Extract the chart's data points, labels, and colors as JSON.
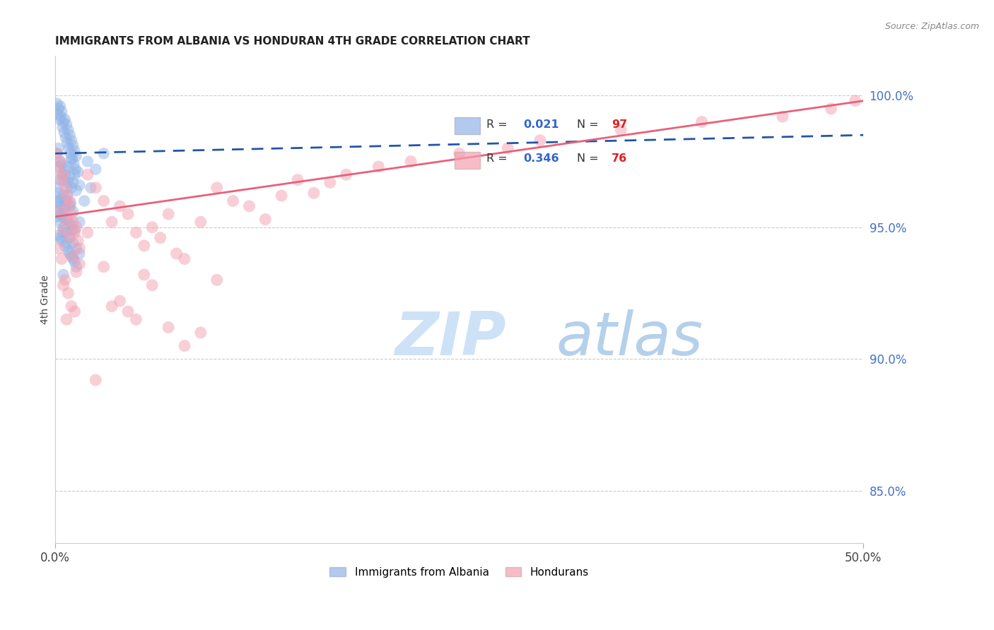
{
  "title": "IMMIGRANTS FROM ALBANIA VS HONDURAN 4TH GRADE CORRELATION CHART",
  "source": "Source: ZipAtlas.com",
  "ylabel": "4th Grade",
  "xlim": [
    0.0,
    50.0
  ],
  "ylim": [
    83.0,
    101.5
  ],
  "yticks": [
    85.0,
    90.0,
    95.0,
    100.0
  ],
  "ytick_labels": [
    "85.0%",
    "90.0%",
    "95.0%",
    "100.0%"
  ],
  "xtick_labels": [
    "0.0%",
    "50.0%"
  ],
  "xtick_vals": [
    0.0,
    50.0
  ],
  "legend_blue_r": "0.021",
  "legend_blue_n": "97",
  "legend_pink_r": "0.346",
  "legend_pink_n": "76",
  "blue_color": "#92b4e8",
  "pink_color": "#f4a0b0",
  "trendline_blue_color": "#2255aa",
  "trendline_pink_color": "#e8607a",
  "watermark_zip_color": "#c8dcf0",
  "watermark_atlas_color": "#b0c8e8",
  "blue_scatter": [
    [
      0.1,
      99.7
    ],
    [
      0.2,
      99.5
    ],
    [
      0.15,
      99.3
    ],
    [
      0.25,
      99.1
    ],
    [
      0.3,
      99.6
    ],
    [
      0.4,
      99.4
    ],
    [
      0.35,
      99.2
    ],
    [
      0.5,
      99.0
    ],
    [
      0.45,
      98.8
    ],
    [
      0.6,
      99.1
    ],
    [
      0.55,
      98.6
    ],
    [
      0.7,
      98.9
    ],
    [
      0.65,
      98.4
    ],
    [
      0.8,
      98.7
    ],
    [
      0.75,
      98.2
    ],
    [
      0.9,
      98.5
    ],
    [
      0.85,
      98.0
    ],
    [
      1.0,
      98.3
    ],
    [
      0.95,
      97.8
    ],
    [
      1.1,
      98.1
    ],
    [
      1.05,
      97.6
    ],
    [
      1.2,
      97.9
    ],
    [
      1.15,
      97.4
    ],
    [
      1.3,
      97.7
    ],
    [
      1.25,
      97.2
    ],
    [
      0.2,
      98.0
    ],
    [
      0.3,
      97.5
    ],
    [
      0.4,
      97.0
    ],
    [
      0.5,
      96.8
    ],
    [
      0.6,
      97.2
    ],
    [
      0.7,
      96.5
    ],
    [
      0.8,
      97.3
    ],
    [
      0.9,
      96.9
    ],
    [
      1.0,
      97.6
    ],
    [
      1.1,
      96.7
    ],
    [
      1.2,
      97.0
    ],
    [
      1.3,
      96.4
    ],
    [
      1.4,
      97.1
    ],
    [
      1.5,
      96.6
    ],
    [
      0.1,
      97.8
    ],
    [
      0.2,
      97.3
    ],
    [
      0.3,
      96.8
    ],
    [
      0.4,
      97.4
    ],
    [
      0.5,
      96.2
    ],
    [
      0.6,
      97.0
    ],
    [
      0.7,
      96.0
    ],
    [
      0.8,
      96.7
    ],
    [
      0.9,
      95.8
    ],
    [
      1.0,
      96.5
    ],
    [
      1.1,
      95.6
    ],
    [
      0.15,
      96.3
    ],
    [
      0.25,
      95.9
    ],
    [
      0.35,
      96.1
    ],
    [
      0.45,
      95.5
    ],
    [
      0.55,
      95.8
    ],
    [
      0.65,
      95.3
    ],
    [
      0.75,
      96.2
    ],
    [
      0.85,
      95.1
    ],
    [
      0.95,
      95.9
    ],
    [
      1.05,
      94.9
    ],
    [
      0.1,
      95.4
    ],
    [
      0.2,
      94.7
    ],
    [
      0.3,
      95.2
    ],
    [
      0.4,
      94.5
    ],
    [
      0.5,
      95.0
    ],
    [
      0.6,
      94.3
    ],
    [
      0.7,
      94.8
    ],
    [
      0.8,
      94.1
    ],
    [
      0.9,
      94.6
    ],
    [
      1.0,
      93.9
    ],
    [
      1.1,
      94.4
    ],
    [
      1.2,
      93.7
    ],
    [
      1.3,
      94.2
    ],
    [
      1.5,
      94.0
    ],
    [
      2.0,
      97.5
    ],
    [
      2.5,
      97.2
    ],
    [
      3.0,
      97.8
    ],
    [
      1.8,
      96.0
    ],
    [
      2.2,
      96.5
    ],
    [
      0.4,
      95.5
    ],
    [
      0.5,
      94.8
    ],
    [
      0.6,
      95.7
    ],
    [
      0.7,
      94.4
    ],
    [
      0.8,
      95.3
    ],
    [
      0.9,
      94.0
    ],
    [
      1.0,
      95.1
    ],
    [
      1.1,
      93.8
    ],
    [
      1.2,
      94.9
    ],
    [
      1.3,
      93.5
    ],
    [
      0.2,
      95.6
    ],
    [
      0.3,
      94.6
    ],
    [
      0.4,
      95.4
    ],
    [
      0.5,
      93.2
    ],
    [
      1.5,
      95.2
    ],
    [
      0.1,
      96.5
    ],
    [
      0.2,
      96.0
    ],
    [
      0.3,
      95.8
    ]
  ],
  "pink_scatter": [
    [
      0.1,
      97.8
    ],
    [
      0.2,
      97.2
    ],
    [
      0.3,
      97.5
    ],
    [
      0.4,
      96.8
    ],
    [
      0.5,
      97.0
    ],
    [
      0.6,
      96.5
    ],
    [
      0.7,
      96.2
    ],
    [
      0.8,
      95.8
    ],
    [
      0.9,
      96.0
    ],
    [
      1.0,
      95.5
    ],
    [
      1.1,
      95.2
    ],
    [
      1.2,
      94.8
    ],
    [
      1.3,
      95.0
    ],
    [
      1.4,
      94.5
    ],
    [
      1.5,
      94.2
    ],
    [
      0.3,
      95.6
    ],
    [
      0.5,
      94.9
    ],
    [
      0.7,
      95.3
    ],
    [
      0.9,
      94.6
    ],
    [
      1.1,
      93.9
    ],
    [
      1.3,
      93.3
    ],
    [
      1.5,
      93.6
    ],
    [
      0.2,
      94.2
    ],
    [
      0.4,
      93.8
    ],
    [
      0.6,
      93.0
    ],
    [
      0.8,
      92.5
    ],
    [
      1.0,
      92.0
    ],
    [
      1.2,
      91.8
    ],
    [
      0.5,
      92.8
    ],
    [
      0.7,
      91.5
    ],
    [
      2.0,
      97.0
    ],
    [
      2.5,
      96.5
    ],
    [
      3.0,
      96.0
    ],
    [
      3.5,
      95.2
    ],
    [
      4.0,
      95.8
    ],
    [
      4.5,
      95.5
    ],
    [
      5.0,
      94.8
    ],
    [
      5.5,
      94.3
    ],
    [
      6.0,
      95.0
    ],
    [
      6.5,
      94.6
    ],
    [
      7.0,
      95.5
    ],
    [
      7.5,
      94.0
    ],
    [
      8.0,
      93.8
    ],
    [
      9.0,
      95.2
    ],
    [
      10.0,
      96.5
    ],
    [
      11.0,
      96.0
    ],
    [
      12.0,
      95.8
    ],
    [
      13.0,
      95.3
    ],
    [
      14.0,
      96.2
    ],
    [
      15.0,
      96.8
    ],
    [
      16.0,
      96.3
    ],
    [
      17.0,
      96.7
    ],
    [
      18.0,
      97.0
    ],
    [
      20.0,
      97.3
    ],
    [
      22.0,
      97.5
    ],
    [
      25.0,
      97.8
    ],
    [
      28.0,
      98.0
    ],
    [
      30.0,
      98.3
    ],
    [
      35.0,
      98.7
    ],
    [
      40.0,
      99.0
    ],
    [
      45.0,
      99.2
    ],
    [
      48.0,
      99.5
    ],
    [
      49.5,
      99.8
    ],
    [
      2.0,
      94.8
    ],
    [
      3.0,
      93.5
    ],
    [
      4.0,
      92.2
    ],
    [
      5.0,
      91.5
    ],
    [
      6.0,
      92.8
    ],
    [
      7.0,
      91.2
    ],
    [
      8.0,
      90.5
    ],
    [
      9.0,
      91.0
    ],
    [
      10.0,
      93.0
    ],
    [
      3.5,
      92.0
    ],
    [
      4.5,
      91.8
    ],
    [
      5.5,
      93.2
    ],
    [
      2.5,
      89.2
    ]
  ]
}
